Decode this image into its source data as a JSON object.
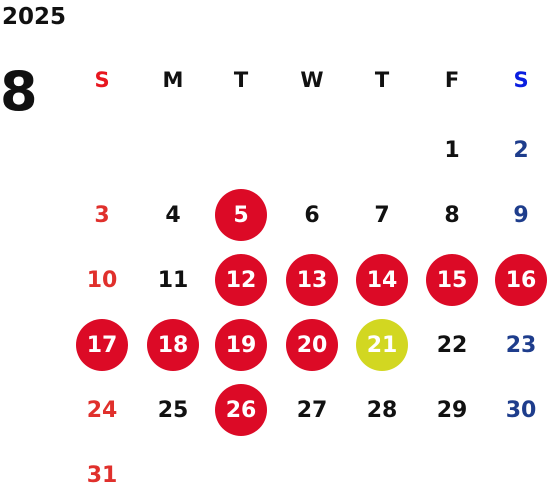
{
  "year": "2025",
  "month": "8",
  "weekdays": [
    "S",
    "M",
    "T",
    "W",
    "T",
    "F",
    "S"
  ],
  "weeks": [
    [
      null,
      null,
      null,
      null,
      null,
      {
        "d": "1"
      },
      {
        "d": "2"
      }
    ],
    [
      {
        "d": "3"
      },
      {
        "d": "4"
      },
      {
        "d": "5",
        "mark": "red"
      },
      {
        "d": "6"
      },
      {
        "d": "7"
      },
      {
        "d": "8"
      },
      {
        "d": "9"
      }
    ],
    [
      {
        "d": "10"
      },
      {
        "d": "11"
      },
      {
        "d": "12",
        "mark": "red"
      },
      {
        "d": "13",
        "mark": "red"
      },
      {
        "d": "14",
        "mark": "red"
      },
      {
        "d": "15",
        "mark": "red"
      },
      {
        "d": "16",
        "mark": "red"
      }
    ],
    [
      {
        "d": "17",
        "mark": "red"
      },
      {
        "d": "18",
        "mark": "red"
      },
      {
        "d": "19",
        "mark": "red"
      },
      {
        "d": "20",
        "mark": "red"
      },
      {
        "d": "21",
        "mark": "yellow"
      },
      {
        "d": "22"
      },
      {
        "d": "23"
      }
    ],
    [
      {
        "d": "24"
      },
      {
        "d": "25"
      },
      {
        "d": "26",
        "mark": "red"
      },
      {
        "d": "27"
      },
      {
        "d": "28"
      },
      {
        "d": "29"
      },
      {
        "d": "30"
      }
    ],
    [
      {
        "d": "31"
      },
      null,
      null,
      null,
      null,
      null,
      null
    ]
  ],
  "colors": {
    "red_mark": "#dc0a26",
    "yellow_mark": "#d2d721",
    "sunday_text": "#e0302c",
    "saturday_text": "#1e3d8c"
  }
}
